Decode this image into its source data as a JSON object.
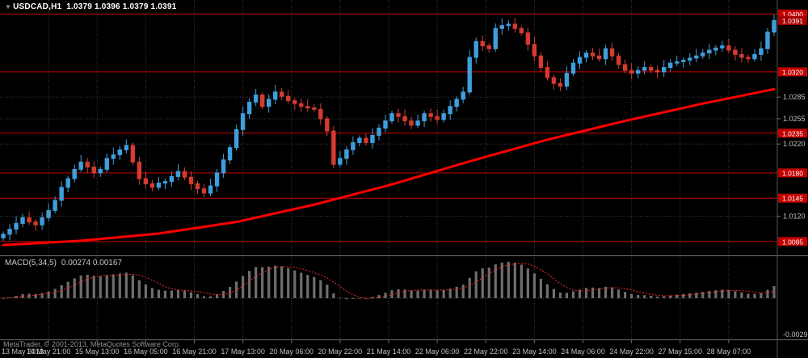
{
  "window": {
    "title_marker": "▼",
    "symbol": "USDCAD,H1",
    "quote_line": "1.0379 1.0396 1.0379 1.0391",
    "footer": "MetaTrader, © 2001-2013, MetaQuotes Software Corp."
  },
  "colors": {
    "background": "#000000",
    "bull": "#3f9edc",
    "bear": "#d63b2f",
    "ma_line": "#ff0000",
    "hline": "#c40000",
    "tag_bg": "#c40000",
    "bid_tag_bg": "#a80000",
    "tag_text": "#ffffff",
    "grid": "#3c3c3c",
    "axis_text": "#bfbfbf",
    "panel_border": "#6f6f6f",
    "histogram": "#6e6e6e",
    "signal_line": "#ff2a2a"
  },
  "chart_data": [
    {
      "type": "candlestick",
      "title": "USDCAD,H1",
      "timeframe": "H1",
      "legend_position": "top-left",
      "grid": true,
      "ylim": [
        1.0068,
        1.0415
      ],
      "open_first": 1.009,
      "closes": [
        1.0095,
        1.0102,
        1.011,
        1.0118,
        1.0112,
        1.0108,
        1.0118,
        1.0128,
        1.0142,
        1.016,
        1.0172,
        1.0185,
        1.0195,
        1.0188,
        1.018,
        1.0185,
        1.02,
        1.0205,
        1.0212,
        1.0218,
        1.0195,
        1.0172,
        1.0165,
        1.016,
        1.0166,
        1.0168,
        1.0175,
        1.0182,
        1.0174,
        1.0165,
        1.0158,
        1.0152,
        1.0162,
        1.018,
        1.0198,
        1.0215,
        1.024,
        1.0262,
        1.0278,
        1.0288,
        1.0272,
        1.0282,
        1.0292,
        1.0286,
        1.028,
        1.0276,
        1.0272,
        1.027,
        1.0268,
        1.0255,
        1.0238,
        1.0192,
        1.02,
        1.0212,
        1.0222,
        1.0228,
        1.0222,
        1.0232,
        1.0242,
        1.0252,
        1.0262,
        1.0258,
        1.0252,
        1.0246,
        1.0252,
        1.0262,
        1.0258,
        1.0254,
        1.0262,
        1.0272,
        1.0282,
        1.0292,
        1.034,
        1.0362,
        1.0356,
        1.0352,
        1.038,
        1.0384,
        1.0386,
        1.038,
        1.0374,
        1.0358,
        1.0342,
        1.0326,
        1.0312,
        1.0304,
        1.03,
        1.0318,
        1.0332,
        1.034,
        1.0346,
        1.0342,
        1.0338,
        1.0352,
        1.0342,
        1.033,
        1.0322,
        1.0318,
        1.0322,
        1.0326,
        1.0322,
        1.032,
        1.0326,
        1.0332,
        1.0334,
        1.0336,
        1.0339,
        1.0342,
        1.0346,
        1.035,
        1.0353,
        1.0356,
        1.035,
        1.0344,
        1.034,
        1.0338,
        1.0344,
        1.0352,
        1.0375,
        1.0391
      ],
      "ma_anchors": [
        [
          0,
          1.008
        ],
        [
          12,
          1.0086
        ],
        [
          24,
          1.0096
        ],
        [
          36,
          1.0112
        ],
        [
          48,
          1.0136
        ],
        [
          60,
          1.0164
        ],
        [
          72,
          1.0196
        ],
        [
          84,
          1.0226
        ],
        [
          96,
          1.0252
        ],
        [
          108,
          1.0276
        ],
        [
          119,
          1.0296
        ]
      ],
      "hlines": [
        "1.0400",
        "1.0320",
        "1.0235",
        "1.0180",
        "1.0145",
        "1.0085"
      ],
      "axis_plain_labels": [
        "1.0285",
        "1.0255",
        "1.0220",
        "1.0120"
      ],
      "bid": "1.0391",
      "x_labels": [
        "13 May 2013",
        "14 May 21:00",
        "15 May 13:00",
        "16 May 05:00",
        "16 May 21:00",
        "17 May 13:00",
        "20 May 06:00",
        "20 May 22:00",
        "21 May 14:00",
        "22 May 06:00",
        "22 May 22:00",
        "23 May 14:00",
        "24 May 06:00",
        "24 May 22:00",
        "27 May 15:00",
        "28 May 07:00"
      ]
    },
    {
      "type": "bar",
      "name": "MACD",
      "label": "MACD(5,34,5)",
      "current_values": "0.00274 0.00167",
      "params": {
        "fast": 5,
        "slow": 34,
        "signal": 5
      },
      "axis_bottom_label": "-0.0029",
      "derived_from": "closes"
    }
  ]
}
